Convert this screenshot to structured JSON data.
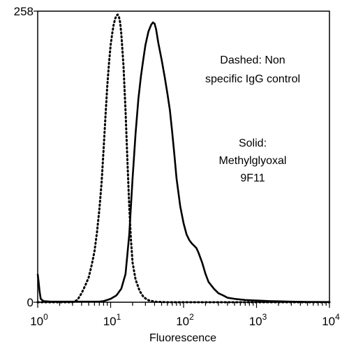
{
  "chart_data": {
    "type": "line",
    "title": "",
    "xlabel": "Fluorescence",
    "ylabel": "",
    "x_scale": "log",
    "xlim": [
      1,
      10000
    ],
    "ylim": [
      0,
      258
    ],
    "x_ticks": [
      {
        "value": 1,
        "base": "10",
        "exp": "0"
      },
      {
        "value": 10,
        "base": "10",
        "exp": "1"
      },
      {
        "value": 100,
        "base": "10",
        "exp": "2"
      },
      {
        "value": 1000,
        "base": "10",
        "exp": "3"
      },
      {
        "value": 10000,
        "base": "10",
        "exp": "4"
      }
    ],
    "y_ticks": [
      {
        "value": 0,
        "label": "0"
      },
      {
        "value": 258,
        "label": "258"
      }
    ],
    "grid": false,
    "series": [
      {
        "style": "dashed",
        "color": "#000000",
        "x": [
          1.0,
          1.3,
          2,
          3,
          3.5,
          4,
          4.5,
          5,
          5.5,
          6,
          6.5,
          7,
          7.5,
          8,
          8.5,
          9,
          9.5,
          10,
          10.5,
          11,
          11.5,
          12,
          12.5,
          13,
          13.5,
          14,
          15,
          16,
          17,
          18,
          19,
          20,
          22,
          25,
          28,
          32,
          40,
          60,
          10000
        ],
        "y": [
          0,
          0,
          0,
          0,
          2,
          8,
          15,
          22,
          33,
          45,
          62,
          82,
          105,
          135,
          165,
          192,
          212,
          228,
          238,
          246,
          251,
          254,
          255,
          253,
          248,
          238,
          210,
          170,
          125,
          85,
          55,
          35,
          20,
          10,
          5,
          2,
          0.5,
          0,
          0
        ]
      },
      {
        "style": "solid",
        "color": "#000000",
        "x": [
          1.0,
          1.03,
          1.06,
          1.1,
          1.2,
          1.5,
          2,
          3,
          4,
          5,
          6,
          7,
          8,
          9,
          10,
          12,
          14,
          16,
          18,
          20,
          22,
          24,
          26,
          28,
          30,
          33,
          36,
          38,
          40,
          42,
          45,
          50,
          55,
          60,
          65,
          70,
          75,
          80,
          90,
          100,
          110,
          120,
          130,
          140,
          150,
          160,
          180,
          200,
          220,
          260,
          300,
          350,
          400,
          500,
          700,
          1000,
          1500,
          2000,
          3000,
          5000,
          10000
        ],
        "y": [
          25,
          18,
          10,
          3,
          1,
          0.5,
          0.5,
          0.5,
          0.5,
          0.5,
          0.5,
          0.5,
          1,
          2,
          3,
          6,
          12,
          25,
          60,
          110,
          150,
          180,
          200,
          215,
          228,
          240,
          246,
          248,
          247,
          242,
          230,
          215,
          200,
          185,
          170,
          150,
          130,
          110,
          85,
          70,
          60,
          55,
          52,
          50,
          48,
          44,
          35,
          25,
          18,
          12,
          8,
          6,
          4,
          3,
          2,
          1.5,
          1,
          0.8,
          0.5,
          0.3,
          0.2
        ]
      }
    ],
    "annotations": [
      {
        "lines": [
          "Dashed: Non",
          "specific IgG control"
        ]
      },
      {
        "lines": [
          "Solid:",
          "Methylglyoxal",
          "9F11"
        ]
      }
    ]
  }
}
